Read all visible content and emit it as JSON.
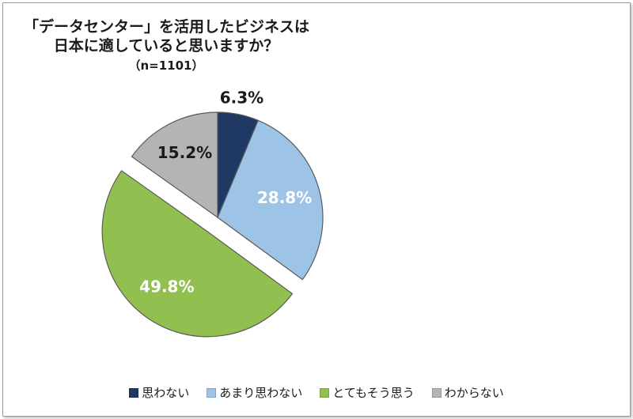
{
  "chart_data": {
    "type": "pie",
    "title_lines": [
      "「データセンター」を活用したビジネスは",
      "日本に適していると思いますか？"
    ],
    "subtitle": "（n=1101）",
    "start_angle_deg": 0,
    "direction": "clockwise",
    "exploded": "とてもそう思う",
    "slices": [
      {
        "label": "思わない",
        "value": 6.3,
        "display": "6.3%",
        "color": "#1f3864",
        "label_color": "#1a1a1a"
      },
      {
        "label": "あまり思わない",
        "value": 28.8,
        "display": "28.8%",
        "color": "#9dc3e6",
        "label_color": "#ffffff"
      },
      {
        "label": "とてもそう思う",
        "value": 49.8,
        "display": "49.8%",
        "color": "#92c050",
        "label_color": "#ffffff"
      },
      {
        "label": "わからない",
        "value": 15.2,
        "display": "15.2%",
        "color": "#b4b4b4",
        "label_color": "#1a1a1a"
      }
    ],
    "legend_position": "bottom"
  }
}
